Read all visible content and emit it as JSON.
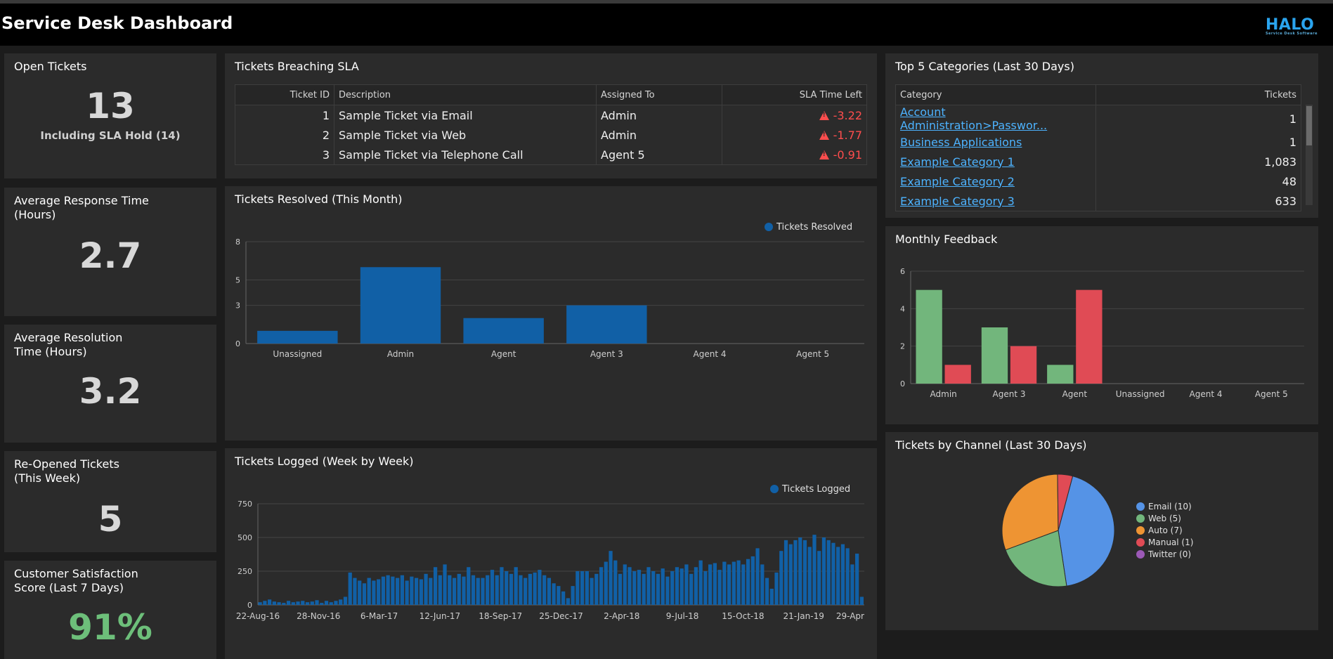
{
  "header": {
    "title": "Service Desk Dashboard",
    "logo_text": "HALO",
    "logo_sub": "Service Desk Software"
  },
  "kpis": {
    "open_tickets": {
      "title": "Open Tickets",
      "value": "13",
      "sub": "Including SLA Hold (14)"
    },
    "avg_response": {
      "title_line1": "Average Response Time",
      "title_line2": "(Hours)",
      "value": "2.7"
    },
    "avg_resolution": {
      "title_line1": "Average Resolution",
      "title_line2": "Time (Hours)",
      "value": "3.2"
    },
    "reopened": {
      "title_line1": "Re-Opened Tickets",
      "title_line2": "(This Week)",
      "value": "5"
    },
    "csat": {
      "title_line1": "Customer Satisfaction",
      "title_line2": "Score (Last 7 Days)",
      "value": "91%"
    }
  },
  "sla": {
    "title": "Tickets Breaching SLA",
    "columns": [
      "Ticket ID",
      "Description",
      "Assigned To",
      "SLA Time Left"
    ],
    "rows": [
      {
        "id": "1",
        "desc": "Sample Ticket via Email",
        "assigned": "Admin",
        "left": "-3.22"
      },
      {
        "id": "2",
        "desc": "Sample Ticket via Web",
        "assigned": "Admin",
        "left": "-1.77"
      },
      {
        "id": "3",
        "desc": "Sample Ticket via Telephone Call",
        "assigned": "Agent 5",
        "left": "-0.91"
      }
    ]
  },
  "top5": {
    "title": "Top 5 Categories (Last 30 Days)",
    "columns": [
      "Category",
      "Tickets"
    ],
    "rows": [
      {
        "cat": "Account Administration>Passwor...",
        "count": "1"
      },
      {
        "cat": "Business Applications",
        "count": "1"
      },
      {
        "cat": "Example Category 1",
        "count": "1,083"
      },
      {
        "cat": "Example Category 2",
        "count": "48"
      },
      {
        "cat": "Example Category 3",
        "count": "633"
      }
    ]
  },
  "colors": {
    "blue": "#1160a6",
    "green": "#72b67c",
    "red": "#e04b55",
    "accent": "#4db3ff"
  },
  "resolved_panel": {
    "title": "Tickets Resolved (This Month)"
  },
  "feedback_panel": {
    "title": "Monthly Feedback"
  },
  "logged_panel": {
    "title": "Tickets Logged (Week by Week)"
  },
  "channel_panel": {
    "title": "Tickets by Channel (Last 30 Days)"
  },
  "chart_data": [
    {
      "type": "bar",
      "title": "Tickets Resolved (This Month)",
      "categories": [
        "Unassigned",
        "Admin",
        "Agent",
        "Agent 3",
        "Agent 4",
        "Agent 5"
      ],
      "series": [
        {
          "name": "Tickets Resolved",
          "values": [
            1,
            6,
            2,
            3,
            0,
            0
          ]
        }
      ],
      "yticks": [
        "0",
        "3",
        "5",
        "8"
      ],
      "ylim": [
        0,
        8
      ],
      "legend": "top-right",
      "grid": true
    },
    {
      "type": "bar",
      "title": "Monthly Feedback",
      "categories": [
        "Admin",
        "Agent 3",
        "Agent",
        "Unassigned",
        "Agent 4",
        "Agent 5"
      ],
      "series": [
        {
          "values": [
            5,
            3,
            1,
            0,
            0,
            0
          ]
        },
        {
          "values": [
            1,
            2,
            5,
            0,
            0,
            0
          ]
        }
      ],
      "yticks": [
        "0",
        "2",
        "4",
        "6"
      ],
      "ylim": [
        0,
        6
      ],
      "grid": true
    },
    {
      "type": "bar",
      "title": "Tickets Logged (Week by Week)",
      "series": [
        {
          "name": "Tickets Logged",
          "values": [
            20,
            30,
            40,
            25,
            20,
            15,
            30,
            20,
            25,
            30,
            20,
            25,
            35,
            15,
            30,
            20,
            30,
            40,
            60,
            240,
            200,
            180,
            160,
            200,
            180,
            190,
            210,
            220,
            210,
            200,
            220,
            180,
            210,
            200,
            190,
            230,
            200,
            280,
            220,
            300,
            220,
            200,
            230,
            210,
            280,
            220,
            200,
            200,
            220,
            260,
            220,
            280,
            250,
            230,
            280,
            220,
            200,
            230,
            240,
            260,
            220,
            200,
            160,
            140,
            100,
            50,
            140,
            250,
            250,
            250,
            200,
            230,
            280,
            320,
            400,
            330,
            230,
            300,
            280,
            250,
            260,
            230,
            280,
            250,
            230,
            270,
            210,
            250,
            280,
            270,
            300,
            230,
            280,
            330,
            250,
            300,
            310,
            260,
            320,
            300,
            320,
            330,
            300,
            340,
            360,
            420,
            300,
            200,
            120,
            240,
            400,
            480,
            450,
            480,
            500,
            480,
            430,
            520,
            400,
            500,
            480,
            460,
            430,
            450,
            420,
            300,
            380,
            60
          ]
        }
      ],
      "xticks": [
        "22-Aug-16",
        "28-Nov-16",
        "6-Mar-17",
        "12-Jun-17",
        "18-Sep-17",
        "25-Dec-17",
        "2-Apr-18",
        "9-Jul-18",
        "15-Oct-18",
        "21-Jan-19",
        "29-Apr"
      ],
      "yticks": [
        "0",
        "250",
        "500",
        "750"
      ],
      "ylim": [
        0,
        750
      ],
      "legend": "top-right",
      "grid": true
    },
    {
      "type": "pie",
      "title": "Tickets by Channel (Last 30 Days)",
      "slices": [
        {
          "label": "Email (10)",
          "value": 10,
          "color": "#5593e6"
        },
        {
          "label": "Web (5)",
          "value": 5,
          "color": "#72b67c"
        },
        {
          "label": "Auto (7)",
          "value": 7,
          "color": "#ee9433"
        },
        {
          "label": "Manual (1)",
          "value": 1,
          "color": "#e04b55"
        },
        {
          "label": "Twitter (0)",
          "value": 0,
          "color": "#9b59b6"
        }
      ],
      "legend": "right"
    }
  ]
}
